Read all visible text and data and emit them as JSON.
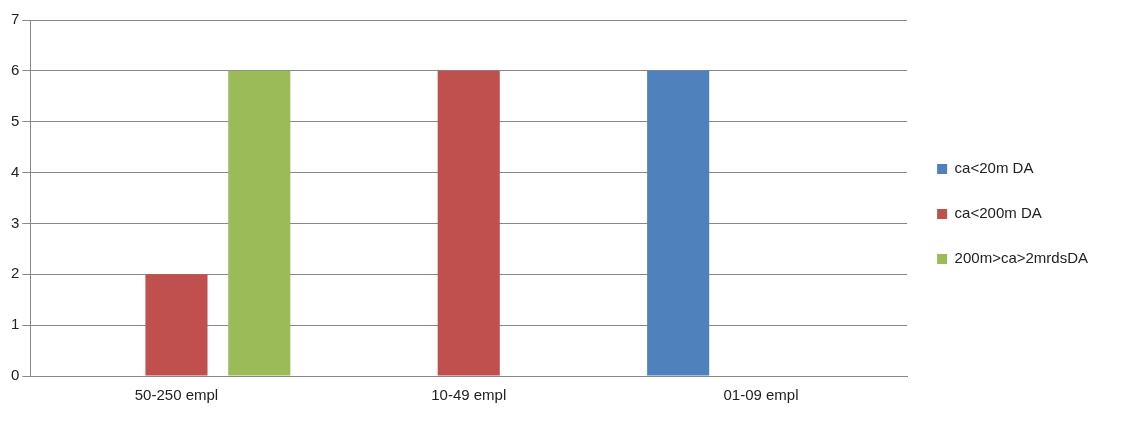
{
  "chart_data": {
    "type": "bar",
    "categories": [
      "50-250 empl",
      "10-49 empl",
      "01-09 empl"
    ],
    "series": [
      {
        "name": "ca<20m DA",
        "color": "#4f81bd",
        "values": [
          null,
          null,
          6
        ]
      },
      {
        "name": "ca<200m DA",
        "color": "#c0504d",
        "values": [
          2,
          6,
          null
        ]
      },
      {
        "name": "200m>ca>2mrdsDA",
        "color": "#9bbb59",
        "values": [
          6,
          null,
          null
        ]
      }
    ],
    "ylim": [
      0,
      7
    ],
    "yticks": [
      0,
      1,
      2,
      3,
      4,
      5,
      6,
      7
    ],
    "grid": "y",
    "legend": "right"
  }
}
